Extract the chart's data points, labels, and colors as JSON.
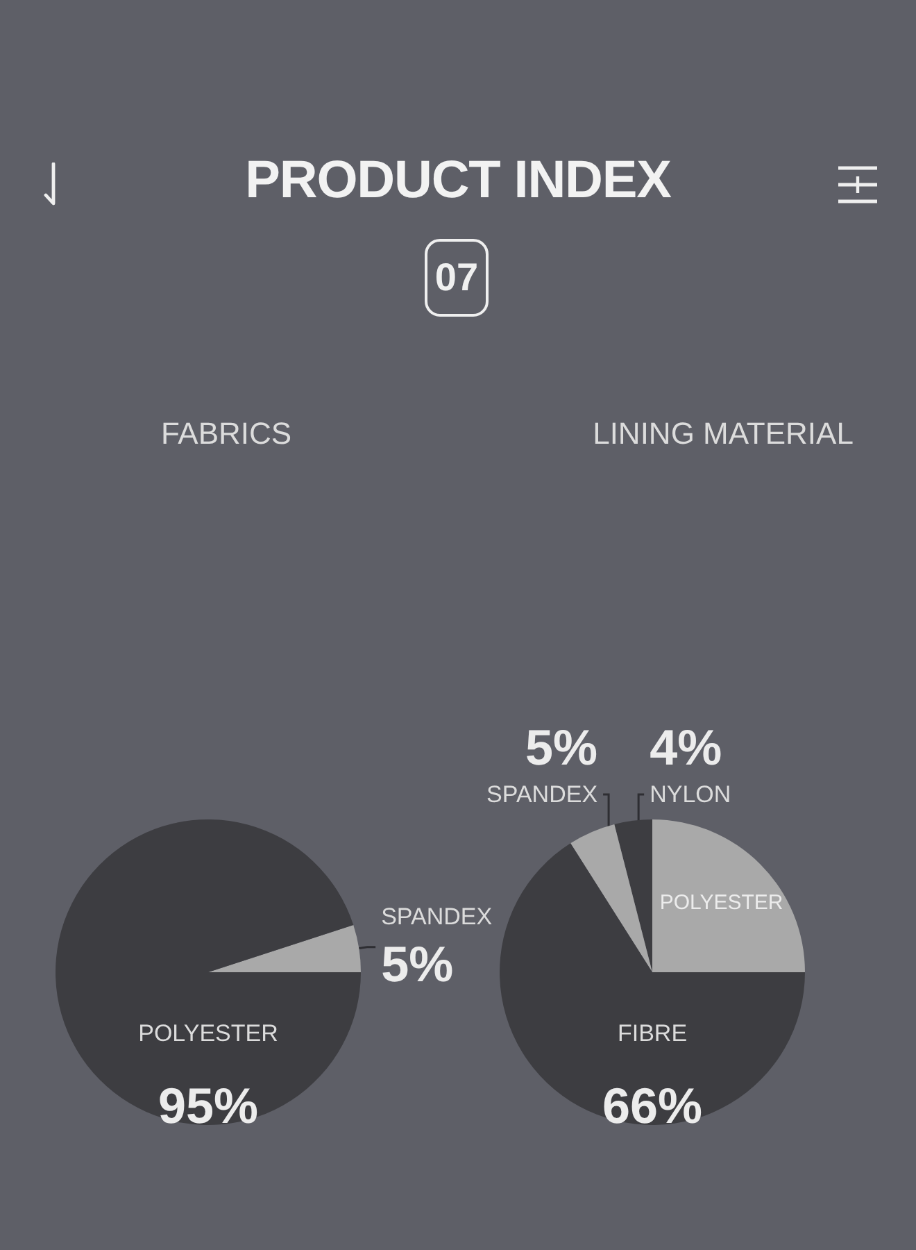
{
  "chart_data": [
    {
      "type": "other",
      "title": "PRODUCT INDEX",
      "subtitle": "07"
    },
    {
      "type": "pie",
      "title": "FABRICS",
      "categories": [
        "SPANDEX",
        "POLYESTER"
      ],
      "values": [
        5,
        95
      ],
      "colors": [
        "#a9a9a9",
        "#3d3d41"
      ],
      "value_labels": [
        "5%",
        "95%"
      ]
    },
    {
      "type": "pie",
      "title": "LINING MATERIAL",
      "categories": [
        "POLYESTER",
        "NYLON",
        "SPANDEX",
        "FIBRE"
      ],
      "values": [
        25,
        4,
        5,
        66
      ],
      "colors": [
        "#a9a9a9",
        "#3d3d41",
        "#a9a9a9",
        "#3d3d41"
      ],
      "value_labels": [
        null,
        "4%",
        "5%",
        "66%"
      ]
    }
  ]
}
